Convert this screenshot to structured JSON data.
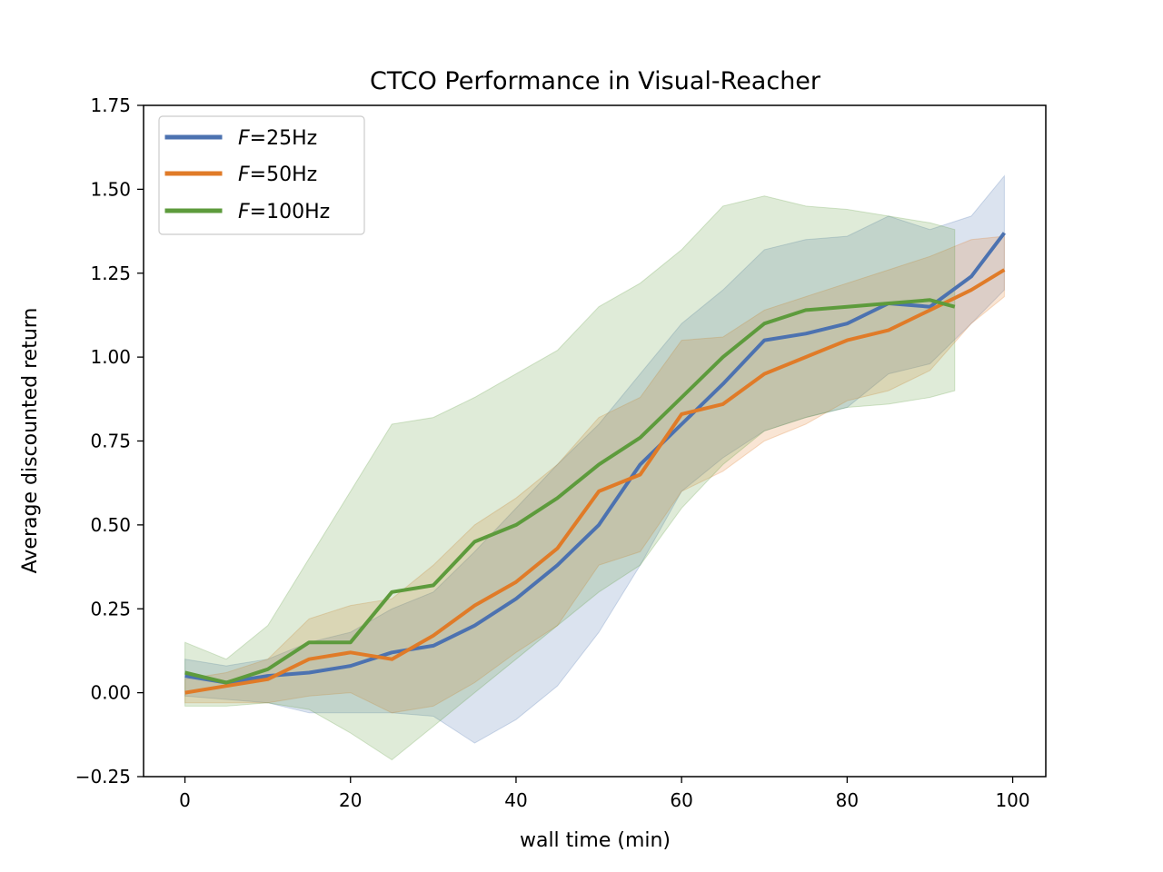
{
  "chart_data": {
    "type": "line",
    "title": "CTCO Performance in Visual-Reacher",
    "xlabel": "wall time (min)",
    "ylabel": "Average discounted return",
    "xlim": [
      -5,
      104
    ],
    "ylim": [
      -0.25,
      1.75
    ],
    "xticks": [
      0,
      20,
      40,
      60,
      80,
      100
    ],
    "yticks": [
      -0.25,
      0.0,
      0.25,
      0.5,
      0.75,
      1.0,
      1.25,
      1.5,
      1.75
    ],
    "ytick_labels": [
      "−0.25",
      "0.00",
      "0.25",
      "0.50",
      "0.75",
      "1.00",
      "1.25",
      "1.50",
      "1.75"
    ],
    "grid": false,
    "legend_position": "top-left",
    "series": [
      {
        "name": "F=25Hz",
        "legend_italic": "F",
        "legend_rest": "=25Hz",
        "color": "#4c72b0",
        "x": [
          0,
          5,
          10,
          15,
          20,
          25,
          30,
          35,
          40,
          45,
          50,
          55,
          60,
          65,
          70,
          75,
          80,
          85,
          90,
          95,
          99
        ],
        "y": [
          0.05,
          0.03,
          0.05,
          0.06,
          0.08,
          0.12,
          0.14,
          0.2,
          0.28,
          0.38,
          0.5,
          0.68,
          0.8,
          0.92,
          1.05,
          1.07,
          1.1,
          1.16,
          1.15,
          1.24,
          1.37
        ],
        "band_low": [
          -0.01,
          -0.02,
          -0.03,
          -0.06,
          -0.06,
          -0.06,
          -0.07,
          -0.15,
          -0.08,
          0.02,
          0.18,
          0.38,
          0.6,
          0.7,
          0.78,
          0.82,
          0.85,
          0.95,
          0.98,
          1.1,
          1.2
        ],
        "band_high": [
          0.1,
          0.08,
          0.1,
          0.15,
          0.18,
          0.25,
          0.3,
          0.42,
          0.55,
          0.68,
          0.8,
          0.95,
          1.1,
          1.2,
          1.32,
          1.35,
          1.36,
          1.42,
          1.38,
          1.42,
          1.54
        ]
      },
      {
        "name": "F=50Hz",
        "legend_italic": "F",
        "legend_rest": "=50Hz",
        "color": "#e07b28",
        "x": [
          0,
          5,
          10,
          15,
          20,
          25,
          30,
          35,
          40,
          45,
          50,
          55,
          60,
          65,
          70,
          75,
          80,
          85,
          90,
          95,
          99
        ],
        "y": [
          0.0,
          0.02,
          0.04,
          0.1,
          0.12,
          0.1,
          0.17,
          0.26,
          0.33,
          0.43,
          0.6,
          0.65,
          0.83,
          0.86,
          0.95,
          1.0,
          1.05,
          1.08,
          1.14,
          1.2,
          1.26
        ],
        "band_low": [
          -0.03,
          -0.03,
          -0.03,
          -0.01,
          0.0,
          -0.06,
          -0.04,
          0.03,
          0.12,
          0.2,
          0.38,
          0.42,
          0.6,
          0.66,
          0.75,
          0.8,
          0.87,
          0.9,
          0.96,
          1.1,
          1.18
        ],
        "band_high": [
          0.04,
          0.06,
          0.1,
          0.22,
          0.26,
          0.28,
          0.38,
          0.5,
          0.58,
          0.68,
          0.82,
          0.88,
          1.05,
          1.06,
          1.14,
          1.18,
          1.22,
          1.26,
          1.3,
          1.35,
          1.36
        ]
      },
      {
        "name": "F=100Hz",
        "legend_italic": "F",
        "legend_rest": "=100Hz",
        "color": "#5d9b3c",
        "x": [
          0,
          5,
          10,
          15,
          20,
          25,
          30,
          35,
          40,
          45,
          50,
          55,
          60,
          65,
          70,
          75,
          80,
          85,
          90,
          93
        ],
        "y": [
          0.06,
          0.03,
          0.07,
          0.15,
          0.15,
          0.3,
          0.32,
          0.45,
          0.5,
          0.58,
          0.68,
          0.76,
          0.88,
          1.0,
          1.1,
          1.14,
          1.15,
          1.16,
          1.17,
          1.15
        ],
        "band_low": [
          -0.04,
          -0.04,
          -0.03,
          -0.05,
          -0.12,
          -0.2,
          -0.1,
          0.0,
          0.1,
          0.2,
          0.3,
          0.38,
          0.55,
          0.68,
          0.78,
          0.82,
          0.85,
          0.86,
          0.88,
          0.9
        ],
        "band_high": [
          0.15,
          0.1,
          0.2,
          0.4,
          0.6,
          0.8,
          0.82,
          0.88,
          0.95,
          1.02,
          1.15,
          1.22,
          1.32,
          1.45,
          1.48,
          1.45,
          1.44,
          1.42,
          1.4,
          1.38
        ]
      }
    ]
  }
}
